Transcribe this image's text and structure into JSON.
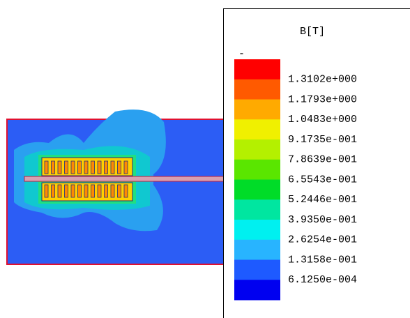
{
  "legend": {
    "title": "B[T]",
    "marker": "-",
    "labels": [
      "1.3102e+000",
      "1.1793e+000",
      "1.0483e+000",
      "9.1735e-001",
      "7.8639e-001",
      "6.5543e-001",
      "5.2446e-001",
      "3.9350e-001",
      "2.6254e-001",
      "1.3158e-001",
      "6.1250e-004"
    ],
    "colors": [
      "#ff0000",
      "#ff5a00",
      "#ffaa00",
      "#f0f000",
      "#b4f000",
      "#5ae600",
      "#00dc28",
      "#00e6a0",
      "#00f0f0",
      "#28b4ff",
      "#1e5aff",
      "#0000f0"
    ]
  }
}
